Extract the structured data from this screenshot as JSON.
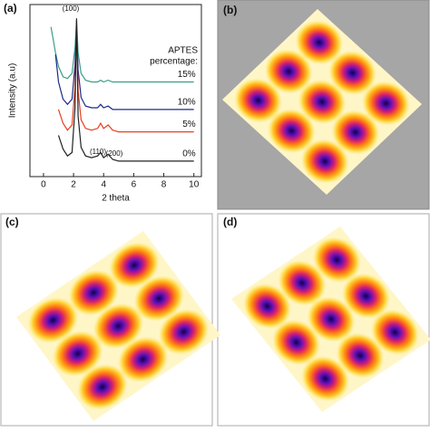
{
  "chart_data": {
    "type": "line",
    "panel_label": "(a)",
    "xlabel": "2 theta",
    "ylabel": "Intensity (a.u)",
    "legend_title": [
      "APTES",
      "percentage:"
    ],
    "annotations": [
      "(100)",
      "(110)",
      "(200)"
    ],
    "x": [
      0.5,
      0.8,
      1.0,
      1.3,
      1.6,
      1.9,
      2.1,
      2.2,
      2.3,
      2.5,
      2.8,
      3.2,
      3.6,
      3.8,
      4.0,
      4.3,
      4.6,
      5,
      6,
      7,
      8,
      9,
      10
    ],
    "series": [
      {
        "name": "15%",
        "color": "#3a9e86",
        "values": [
          87,
          72,
          64,
          58,
          57,
          60,
          75,
          91,
          72,
          60,
          56,
          55,
          55,
          56,
          55,
          56,
          55,
          55,
          55,
          55,
          55,
          55,
          55
        ]
      },
      {
        "name": "10%",
        "color": "#1e2a8a",
        "values": [
          null,
          71,
          55,
          45,
          42,
          45,
          65,
          87,
          62,
          46,
          41,
          40,
          40,
          42,
          40,
          41,
          39,
          39,
          39,
          39,
          39,
          39,
          39
        ]
      },
      {
        "name": "5%",
        "color": "#e84020",
        "values": [
          null,
          null,
          39,
          31,
          27,
          30,
          52,
          87,
          50,
          33,
          28,
          27,
          28,
          31,
          28,
          30,
          27,
          26,
          26,
          26,
          26,
          26,
          26
        ]
      },
      {
        "name": "0%",
        "color": "#222222",
        "values": [
          null,
          null,
          24,
          16,
          12,
          14,
          40,
          92,
          35,
          17,
          12,
          11,
          12,
          14,
          11,
          13,
          10,
          9,
          9,
          9,
          9,
          9,
          9
        ]
      }
    ],
    "xlim": [
      -0.9,
      10.5
    ],
    "xticks": [
      0,
      2,
      4,
      6,
      8,
      10
    ],
    "ylim": [
      0,
      100
    ]
  },
  "panels": [
    {
      "label": "(b)"
    },
    {
      "label": "(c)"
    },
    {
      "label": "(d)"
    }
  ]
}
